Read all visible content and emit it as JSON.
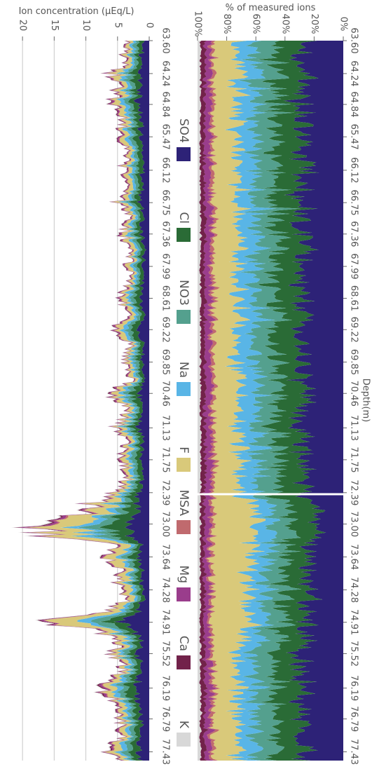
{
  "chart_data": [
    {
      "type": "area",
      "stacked": true,
      "orientation": "vertical-depth",
      "title": "",
      "xlabel": "Depth(m)",
      "ylabel": "Ion concentration (µEq/L)",
      "ylim": [
        0,
        23
      ],
      "y_ticks": [
        "20",
        "15",
        "10",
        "5",
        "0"
      ],
      "y_tick_values": [
        20,
        15,
        10,
        5,
        0
      ],
      "grid": true,
      "depth_ticks": [
        "63.60",
        "64.24",
        "64.84",
        "65.47",
        "66.12",
        "66.75",
        "67.36",
        "67.99",
        "68.61",
        "69.22",
        "69.85",
        "70.46",
        "71.13",
        "71.75",
        "72.39",
        "73.00",
        "73.64",
        "74.28",
        "74.91",
        "75.52",
        "76.19",
        "76.79",
        "77.43"
      ],
      "depth_range": [
        63.6,
        77.6
      ],
      "total_concentration_profile": {
        "depth": [
          63.6,
          63.8,
          64.0,
          64.24,
          64.5,
          64.84,
          65.1,
          65.47,
          65.8,
          66.12,
          66.4,
          66.75,
          67.0,
          67.36,
          67.7,
          67.99,
          68.3,
          68.61,
          68.9,
          69.22,
          69.5,
          69.85,
          70.2,
          70.46,
          70.8,
          71.13,
          71.4,
          71.75,
          72.1,
          72.39,
          72.6,
          72.8,
          73.0,
          73.2,
          73.4,
          73.64,
          73.9,
          74.1,
          74.28,
          74.5,
          74.7,
          74.91,
          75.1,
          75.3,
          75.52,
          75.8,
          76.0,
          76.19,
          76.5,
          76.79,
          77.1,
          77.43,
          77.6
        ],
        "total": [
          3.5,
          4.5,
          3.2,
          6.5,
          5.0,
          6.0,
          4.0,
          5.0,
          4.0,
          4.5,
          3.5,
          5.5,
          3.0,
          4.5,
          3.0,
          3.5,
          3.0,
          5.0,
          3.0,
          5.5,
          3.0,
          4.0,
          3.0,
          6.5,
          3.5,
          6.0,
          3.5,
          5.0,
          3.5,
          6.0,
          9.5,
          10.5,
          19.0,
          18.5,
          6.0,
          8.0,
          5.0,
          5.5,
          4.5,
          4.0,
          7.0,
          16.5,
          8.5,
          5.0,
          6.0,
          4.5,
          5.5,
          8.0,
          5.0,
          5.0,
          4.5,
          6.5,
          4.0
        ]
      },
      "species": [
        "SO4",
        "Cl",
        "NO3",
        "Na",
        "F",
        "MSA",
        "Mg",
        "Ca",
        "K"
      ]
    },
    {
      "type": "area",
      "stacked": true,
      "normalized": true,
      "orientation": "vertical-depth",
      "title": "",
      "xlabel": "Depth(m)",
      "ylabel": "% of measured ions",
      "ylim": [
        0,
        100
      ],
      "y_ticks": [
        "100%",
        "80%",
        "60%",
        "40%",
        "20%",
        "0%"
      ],
      "y_tick_values": [
        100,
        80,
        60,
        40,
        20,
        0
      ],
      "depth_ticks": [
        "63.60",
        "64.24",
        "64.84",
        "65.47",
        "66.12",
        "66.75",
        "67.36",
        "67.99",
        "68.61",
        "69.22",
        "69.85",
        "70.46",
        "71.13",
        "71.75",
        "72.39",
        "73.00",
        "73.64",
        "74.28",
        "74.91",
        "75.52",
        "76.19",
        "76.79",
        "77.43"
      ],
      "mean_percent": {
        "SO4": 28,
        "Cl": 18,
        "NO3": 14,
        "Na": 12,
        "F": 17,
        "MSA": 2,
        "Mg": 4,
        "Ca": 3,
        "K": 2
      }
    }
  ],
  "legend": [
    {
      "name": "K",
      "color": "#d8d8d8"
    },
    {
      "name": "Ca",
      "color": "#72224a"
    },
    {
      "name": "Mg",
      "color": "#9a3d8c"
    },
    {
      "name": "MSA",
      "color": "#c06a6e"
    },
    {
      "name": "F",
      "color": "#d9c97a"
    },
    {
      "name": "Na",
      "color": "#59b5e6"
    },
    {
      "name": "NO3",
      "color": "#54a08e"
    },
    {
      "name": "Cl",
      "color": "#2a6b36"
    },
    {
      "name": "SO4",
      "color": "#2d2277"
    }
  ]
}
